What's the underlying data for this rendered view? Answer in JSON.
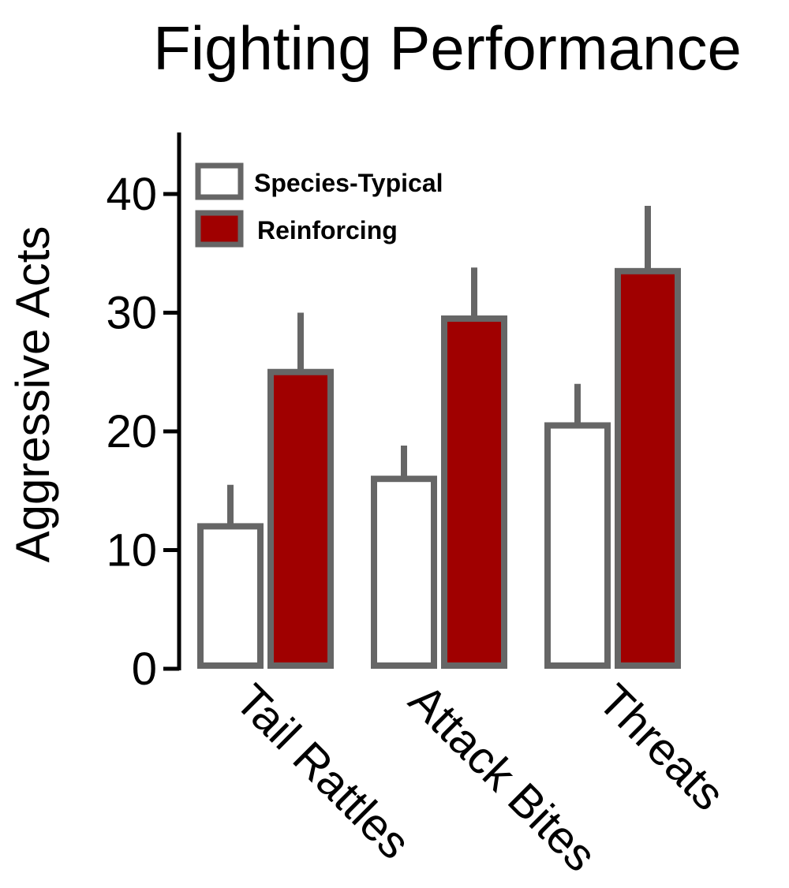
{
  "chart_data": {
    "type": "bar",
    "title": "Fighting Performance",
    "xlabel": "",
    "ylabel": "Aggressive Acts",
    "categories": [
      "Tail Rattles",
      "Attack Bites",
      "Threats"
    ],
    "series": [
      {
        "name": "Species-Typical",
        "values": [
          12,
          16,
          20.5
        ],
        "errors": [
          3.5,
          2.8,
          3.5
        ],
        "fill": "#ffffff",
        "stroke": "#666666"
      },
      {
        "name": "Reinforcing",
        "values": [
          25,
          29.5,
          33.5
        ],
        "errors": [
          5,
          4.3,
          5.5
        ],
        "fill": "#a00000",
        "stroke": "#666666"
      }
    ],
    "ylim": [
      0,
      45
    ],
    "yticks": [
      0,
      10,
      20,
      30,
      40
    ],
    "grid": false,
    "legend_position": "top-left"
  }
}
